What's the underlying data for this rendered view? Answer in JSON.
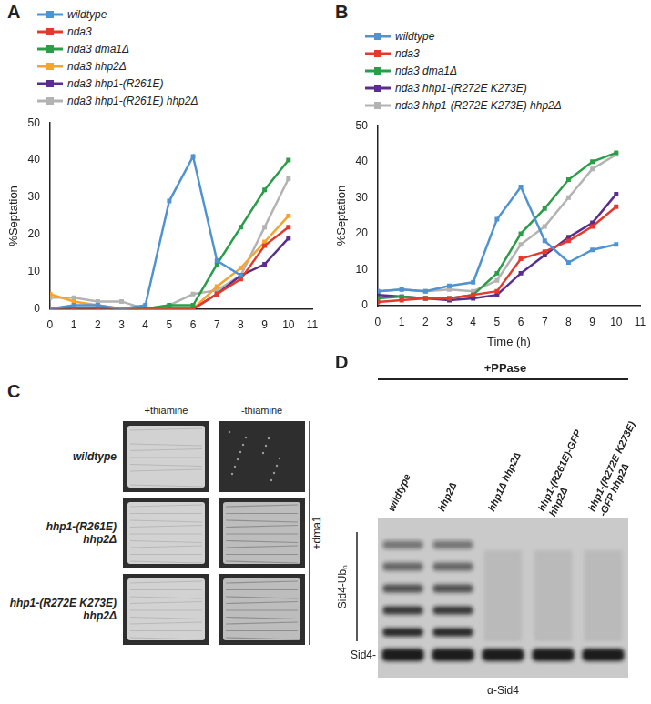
{
  "chart_data": [
    {
      "type": "line",
      "title": "A",
      "ylabel": "%Septation",
      "x": [
        0,
        1,
        2,
        3,
        4,
        5,
        6,
        7,
        8,
        9,
        10
      ],
      "xlim": [
        0,
        11
      ],
      "xticks": [
        0,
        1,
        2,
        3,
        4,
        5,
        6,
        7,
        8,
        9,
        10,
        11
      ],
      "ylim": [
        0,
        50
      ],
      "yticks": [
        0,
        10,
        20,
        30,
        40,
        50
      ],
      "grid": false,
      "legend": "upper left",
      "marker": "square",
      "line_style": "solid",
      "series": [
        {
          "name": "wildtype",
          "color": "#4f93d1",
          "values": [
            0,
            1,
            1,
            0,
            1,
            29,
            41,
            13,
            9,
            null,
            null
          ]
        },
        {
          "name": "nda3",
          "color": "#e5392c",
          "values": [
            0,
            0,
            0,
            0,
            0,
            0,
            0,
            4,
            8,
            17,
            22
          ]
        },
        {
          "name": "nda3 dma1Δ",
          "color": "#2a9d48",
          "values": [
            0,
            0,
            0,
            0,
            0,
            1,
            1,
            12,
            22,
            32,
            40
          ]
        },
        {
          "name": "nda3 hhp2Δ",
          "color": "#f6a52a",
          "values": [
            4,
            2,
            1,
            0,
            0,
            0,
            0,
            6,
            11,
            18,
            25
          ]
        },
        {
          "name": "nda3 hhp1-(R261E)",
          "color": "#5b2d8e",
          "values": [
            0,
            0,
            0,
            0,
            0,
            0,
            0,
            4,
            9,
            12,
            19
          ]
        },
        {
          "name": "nda3 hhp1-(R261E) hhp2Δ",
          "color": "#b3b3b3",
          "values": [
            3,
            3,
            2,
            2,
            0,
            1,
            4,
            5,
            9,
            22,
            35
          ]
        }
      ]
    },
    {
      "type": "line",
      "title": "B",
      "xlabel": "Time (h)",
      "ylabel": "%Septation",
      "x": [
        0,
        1,
        2,
        3,
        4,
        5,
        6,
        7,
        8,
        9,
        10
      ],
      "xlim": [
        0,
        11
      ],
      "xticks": [
        0,
        1,
        2,
        3,
        4,
        5,
        6,
        7,
        8,
        9,
        10,
        11
      ],
      "ylim": [
        0,
        50
      ],
      "yticks": [
        0,
        10,
        20,
        30,
        40,
        50
      ],
      "grid": false,
      "legend": "upper left",
      "marker": "square",
      "line_style": "solid",
      "series": [
        {
          "name": "wildtype",
          "color": "#4f93d1",
          "values": [
            4,
            4.5,
            4,
            5.5,
            6.5,
            24,
            33,
            18,
            12,
            15.5,
            17
          ]
        },
        {
          "name": "nda3",
          "color": "#e5392c",
          "values": [
            1,
            1.5,
            2,
            2,
            3,
            4,
            13,
            15,
            18,
            22,
            27.5
          ]
        },
        {
          "name": "nda3 dma1Δ",
          "color": "#2a9d48",
          "values": [
            2,
            2.5,
            2,
            2,
            3,
            9,
            20,
            27,
            35,
            40,
            42.5
          ]
        },
        {
          "name": "nda3 hhp1-(R272E K273E)",
          "color": "#5b2d8e",
          "values": [
            3,
            2.5,
            2,
            1.5,
            2,
            3,
            9,
            14,
            19,
            23,
            31
          ]
        },
        {
          "name": "nda3 hhp1-(R272E K273E) hhp2Δ",
          "color": "#b3b3b3",
          "values": [
            4,
            4.5,
            4,
            4.5,
            4,
            7,
            17,
            22,
            30,
            38,
            42
          ]
        }
      ]
    }
  ],
  "panel_C": {
    "label": "C",
    "columns": [
      "+thiamine",
      "-thiamine"
    ],
    "rows": [
      [
        "wildtype"
      ],
      [
        "hhp1-(R261E)",
        "hhp2Δ"
      ],
      [
        "hhp1-(R272E K273E)",
        "hhp2Δ"
      ]
    ],
    "side_label": "+dma1"
  },
  "panel_D": {
    "label": "D",
    "treatment": "+PPase",
    "lanes": [
      [
        "wildtype"
      ],
      [
        "hhp2Δ"
      ],
      [
        "hhp1Δ hhp2Δ"
      ],
      [
        "hhp1-(R261E)-GFP",
        "hhp2Δ"
      ],
      [
        "hhp1-(R272E K273E)",
        "-GFP hhp2Δ"
      ]
    ],
    "ladder_label": "Sid4-Ubₙ",
    "band_label": "Sid4-",
    "antibody": "α-Sid4"
  }
}
